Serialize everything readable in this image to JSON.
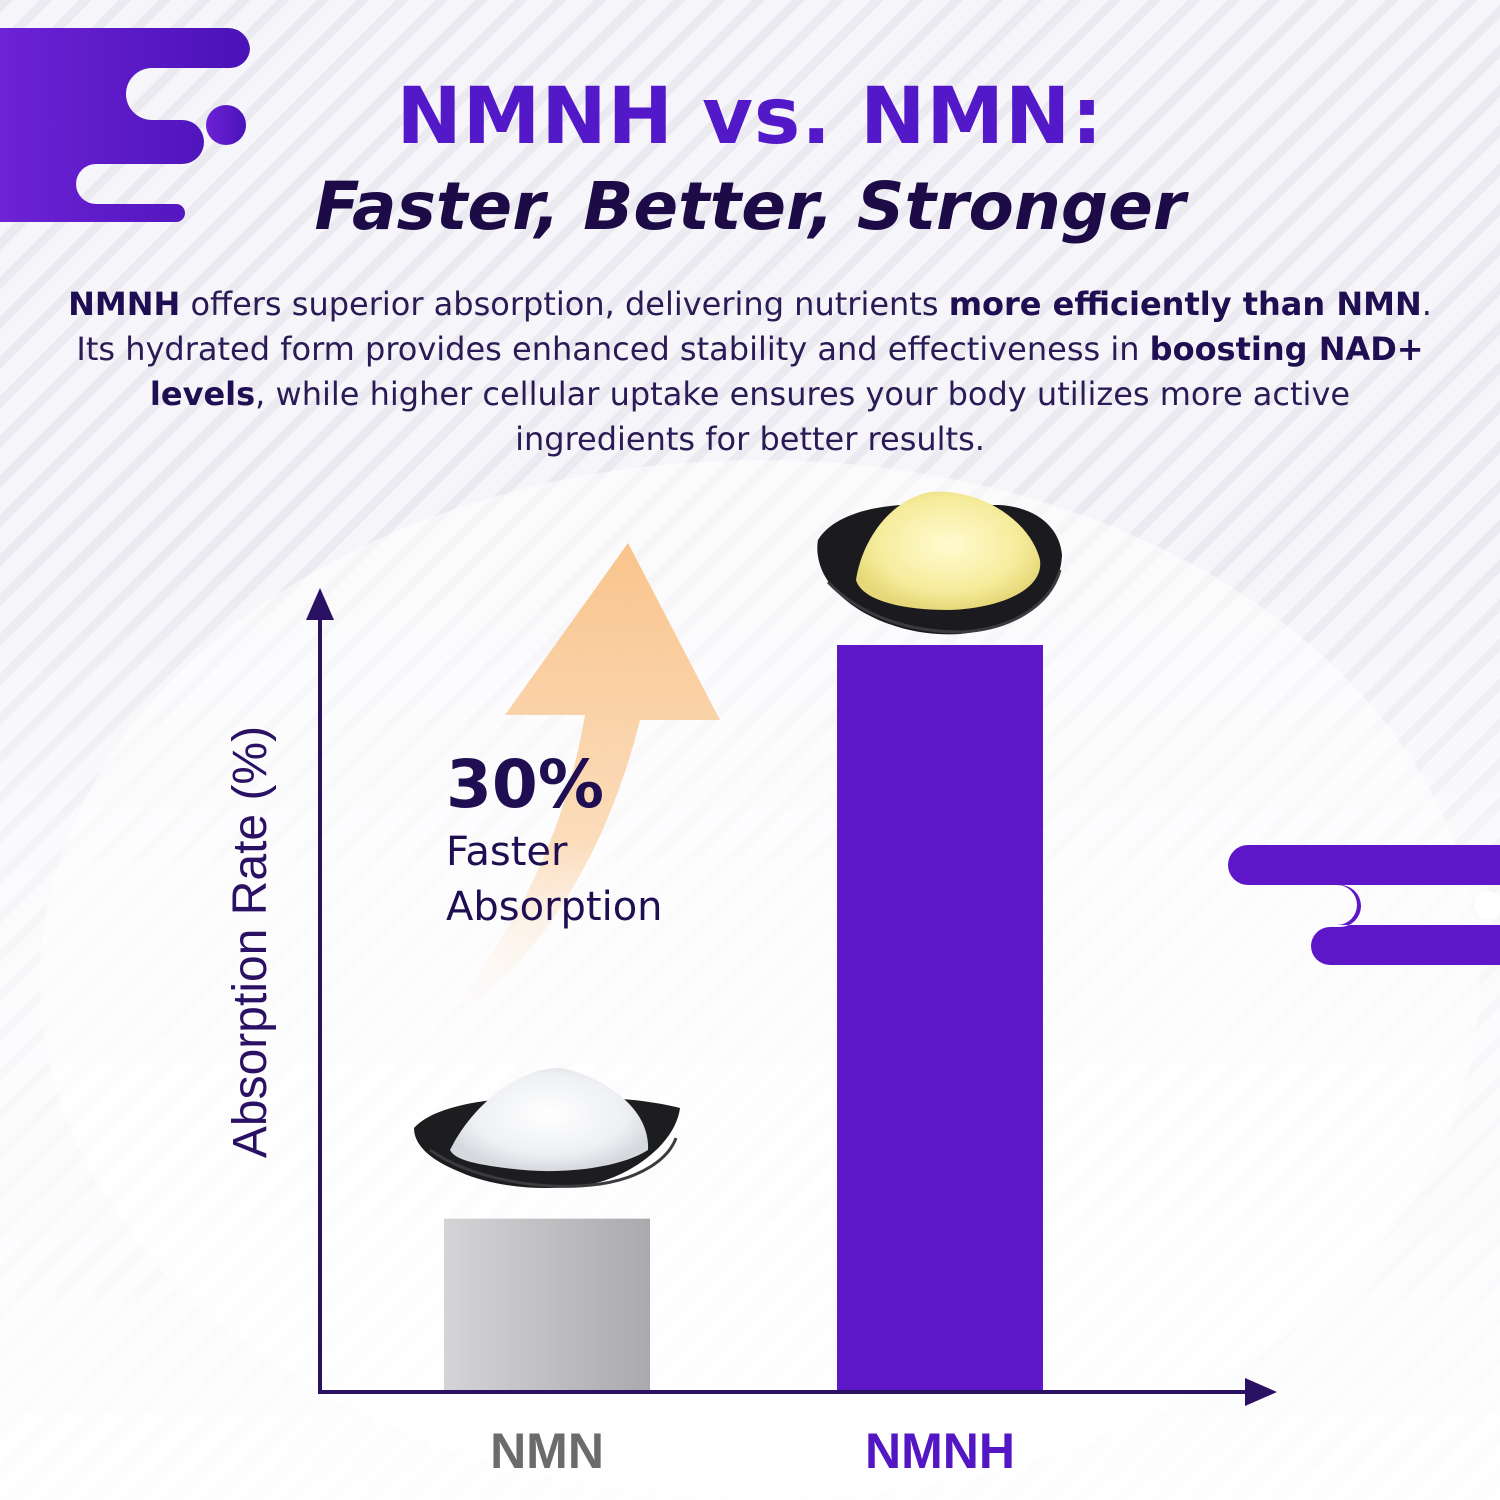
{
  "header": {
    "title": "NMNH vs. NMN:",
    "subtitle": "Faster, Better, Stronger"
  },
  "intro": {
    "p1_bold": "NMNH",
    "p1_text": " offers superior absorption, delivering nutrients ",
    "p2_bold": "more efficiently than NMN",
    "p2_text": ". Its hydrated form provides enhanced stability and effectiveness in ",
    "p3_bold": "boosting NAD+ levels",
    "p3_text": ", while higher cellular uptake ensures your body utilizes more active ingredients for better results."
  },
  "callout": {
    "percent": "30%",
    "line1": "Faster",
    "line2": "Absorption"
  },
  "chart_data": {
    "type": "bar",
    "categories": [
      "NMN",
      "NMNH"
    ],
    "values": [
      23,
      100
    ],
    "ylabel": "Absorption Rate (%)",
    "xlabel": "",
    "grid": false,
    "bar_colors": [
      "#b4b4b8",
      "#5d17c9"
    ],
    "category_label_colors": [
      "#6b6b6b",
      "#5316c4"
    ]
  },
  "colors": {
    "accent": "#5d17c9",
    "navy": "#1f0e52",
    "arrow": "#f8c690"
  }
}
